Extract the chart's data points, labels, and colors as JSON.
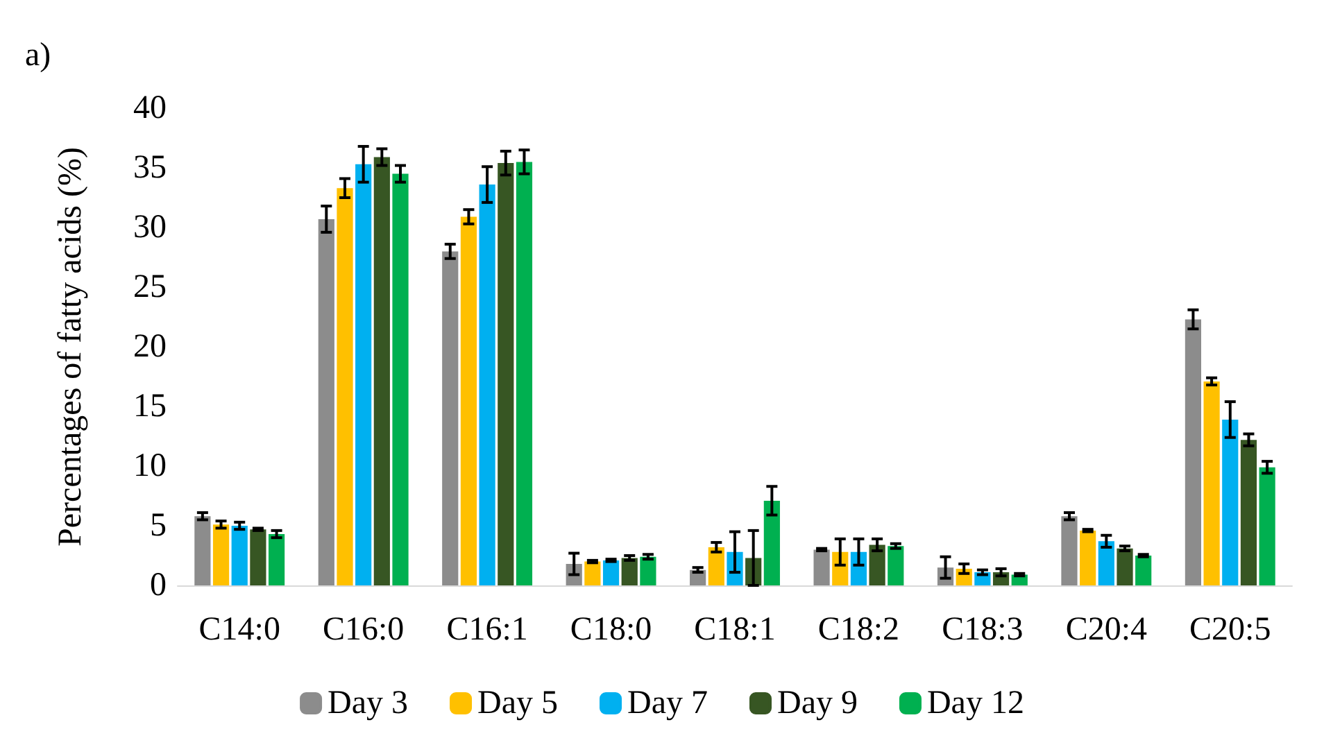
{
  "chart_data": {
    "type": "bar",
    "ylabel": "Percentages of fatty acids (%)",
    "annotations": [
      "a)"
    ],
    "categories": [
      "C14:0",
      "C16:0",
      "C16:1",
      "C18:0",
      "C18:1",
      "C18:2",
      "C18:3",
      "C20:4",
      "C20:5"
    ],
    "series": [
      {
        "name": "Day 3",
        "color": "#8c8c8c",
        "values": [
          5.8,
          30.7,
          28.0,
          1.8,
          1.3,
          3.0,
          1.5,
          5.8,
          22.3
        ],
        "errors": [
          0.3,
          1.1,
          0.6,
          0.9,
          0.2,
          0.1,
          0.9,
          0.3,
          0.8
        ]
      },
      {
        "name": "Day 5",
        "color": "#ffc000",
        "values": [
          5.1,
          33.3,
          30.9,
          2.0,
          3.2,
          2.8,
          1.4,
          4.6,
          17.1
        ],
        "errors": [
          0.3,
          0.8,
          0.6,
          0.1,
          0.4,
          1.1,
          0.4,
          0.1,
          0.3
        ]
      },
      {
        "name": "Day 7",
        "color": "#00b0f0",
        "values": [
          5.0,
          35.3,
          33.6,
          2.1,
          2.8,
          2.8,
          1.1,
          3.7,
          13.9
        ],
        "errors": [
          0.3,
          1.5,
          1.5,
          0.1,
          1.7,
          1.1,
          0.2,
          0.5,
          1.5
        ]
      },
      {
        "name": "Day 9",
        "color": "#375623",
        "values": [
          4.7,
          35.9,
          35.4,
          2.3,
          2.3,
          3.4,
          1.1,
          3.1,
          12.2
        ],
        "errors": [
          0.1,
          0.7,
          1.0,
          0.2,
          2.3,
          0.5,
          0.3,
          0.2,
          0.5
        ]
      },
      {
        "name": "Day 12",
        "color": "#00b050",
        "values": [
          4.3,
          34.5,
          35.5,
          2.4,
          7.1,
          3.3,
          0.9,
          2.5,
          9.9
        ],
        "errors": [
          0.3,
          0.7,
          1.0,
          0.2,
          1.2,
          0.2,
          0.1,
          0.1,
          0.5
        ]
      }
    ],
    "ylim": [
      0,
      40
    ],
    "yticks": [
      0,
      5,
      10,
      15,
      20,
      25,
      30,
      35,
      40
    ],
    "grid": false,
    "legend": "bottom"
  }
}
